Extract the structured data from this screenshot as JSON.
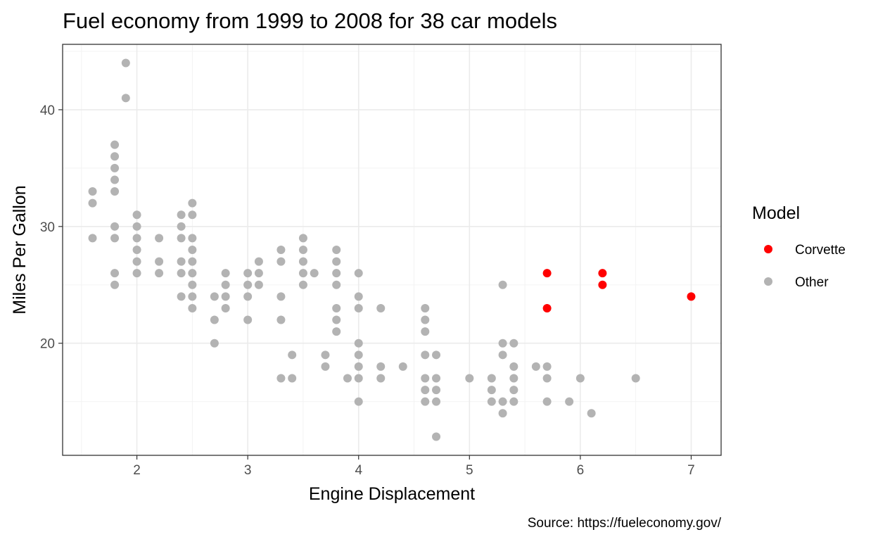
{
  "chart_data": {
    "type": "scatter",
    "title": "Fuel economy from 1999 to 2008 for 38 car models",
    "xlabel": "Engine Displacement",
    "ylabel": "Miles Per Gallon",
    "caption": "Source: https://fueleconomy.gov/",
    "xlim": [
      1.33,
      7.27
    ],
    "ylim": [
      10.4,
      45.6
    ],
    "x_ticks": [
      2,
      3,
      4,
      5,
      6,
      7
    ],
    "y_ticks": [
      20,
      30,
      40
    ],
    "grid": true,
    "legend": {
      "title": "Model",
      "position": "right",
      "entries": [
        {
          "label": "Corvette",
          "color": "#ff0000"
        },
        {
          "label": "Other",
          "color": "#b3b3b3"
        }
      ]
    },
    "series": [
      {
        "name": "Other",
        "color": "#b3b3b3",
        "points": [
          [
            1.6,
            33
          ],
          [
            1.6,
            32
          ],
          [
            1.6,
            29
          ],
          [
            1.8,
            37
          ],
          [
            1.8,
            36
          ],
          [
            1.8,
            35
          ],
          [
            1.8,
            34
          ],
          [
            1.8,
            33
          ],
          [
            1.8,
            30
          ],
          [
            1.8,
            29
          ],
          [
            1.8,
            26
          ],
          [
            1.8,
            25
          ],
          [
            1.9,
            44
          ],
          [
            1.9,
            41
          ],
          [
            2.0,
            31
          ],
          [
            2.0,
            30
          ],
          [
            2.0,
            29
          ],
          [
            2.0,
            28
          ],
          [
            2.0,
            27
          ],
          [
            2.0,
            26
          ],
          [
            2.2,
            29
          ],
          [
            2.2,
            27
          ],
          [
            2.2,
            26
          ],
          [
            2.4,
            31
          ],
          [
            2.4,
            30
          ],
          [
            2.4,
            29
          ],
          [
            2.4,
            27
          ],
          [
            2.4,
            26
          ],
          [
            2.4,
            24
          ],
          [
            2.5,
            32
          ],
          [
            2.5,
            31
          ],
          [
            2.5,
            29
          ],
          [
            2.5,
            28
          ],
          [
            2.5,
            27
          ],
          [
            2.5,
            26
          ],
          [
            2.5,
            25
          ],
          [
            2.5,
            24
          ],
          [
            2.5,
            23
          ],
          [
            2.7,
            24
          ],
          [
            2.7,
            22
          ],
          [
            2.7,
            20
          ],
          [
            2.8,
            26
          ],
          [
            2.8,
            25
          ],
          [
            2.8,
            24
          ],
          [
            2.8,
            23
          ],
          [
            3.0,
            26
          ],
          [
            3.0,
            25
          ],
          [
            3.0,
            24
          ],
          [
            3.0,
            22
          ],
          [
            3.1,
            27
          ],
          [
            3.1,
            26
          ],
          [
            3.1,
            25
          ],
          [
            3.3,
            28
          ],
          [
            3.3,
            27
          ],
          [
            3.3,
            24
          ],
          [
            3.3,
            22
          ],
          [
            3.3,
            17
          ],
          [
            3.4,
            19
          ],
          [
            3.4,
            17
          ],
          [
            3.5,
            29
          ],
          [
            3.5,
            28
          ],
          [
            3.5,
            27
          ],
          [
            3.5,
            26
          ],
          [
            3.5,
            25
          ],
          [
            3.6,
            26
          ],
          [
            3.7,
            19
          ],
          [
            3.7,
            18
          ],
          [
            3.8,
            28
          ],
          [
            3.8,
            27
          ],
          [
            3.8,
            26
          ],
          [
            3.8,
            25
          ],
          [
            3.8,
            23
          ],
          [
            3.8,
            22
          ],
          [
            3.8,
            21
          ],
          [
            3.9,
            17
          ],
          [
            4.0,
            26
          ],
          [
            4.0,
            24
          ],
          [
            4.0,
            23
          ],
          [
            4.0,
            20
          ],
          [
            4.0,
            19
          ],
          [
            4.0,
            18
          ],
          [
            4.0,
            17
          ],
          [
            4.0,
            15
          ],
          [
            4.2,
            23
          ],
          [
            4.2,
            18
          ],
          [
            4.2,
            17
          ],
          [
            4.4,
            18
          ],
          [
            4.6,
            23
          ],
          [
            4.6,
            22
          ],
          [
            4.6,
            21
          ],
          [
            4.6,
            19
          ],
          [
            4.6,
            17
          ],
          [
            4.6,
            16
          ],
          [
            4.6,
            15
          ],
          [
            4.7,
            19
          ],
          [
            4.7,
            17
          ],
          [
            4.7,
            16
          ],
          [
            4.7,
            15
          ],
          [
            4.7,
            12
          ],
          [
            5.0,
            17
          ],
          [
            5.2,
            17
          ],
          [
            5.2,
            16
          ],
          [
            5.2,
            15
          ],
          [
            5.3,
            25
          ],
          [
            5.3,
            20
          ],
          [
            5.3,
            19
          ],
          [
            5.3,
            15
          ],
          [
            5.3,
            14
          ],
          [
            5.4,
            20
          ],
          [
            5.4,
            18
          ],
          [
            5.4,
            17
          ],
          [
            5.4,
            16
          ],
          [
            5.4,
            15
          ],
          [
            5.6,
            18
          ],
          [
            5.7,
            18
          ],
          [
            5.7,
            17
          ],
          [
            5.7,
            15
          ],
          [
            5.9,
            15
          ],
          [
            6.0,
            17
          ],
          [
            6.1,
            14
          ],
          [
            6.5,
            17
          ]
        ]
      },
      {
        "name": "Corvette",
        "color": "#ff0000",
        "points": [
          [
            5.7,
            26
          ],
          [
            5.7,
            23
          ],
          [
            6.2,
            26
          ],
          [
            6.2,
            25
          ],
          [
            7.0,
            24
          ]
        ]
      }
    ]
  }
}
